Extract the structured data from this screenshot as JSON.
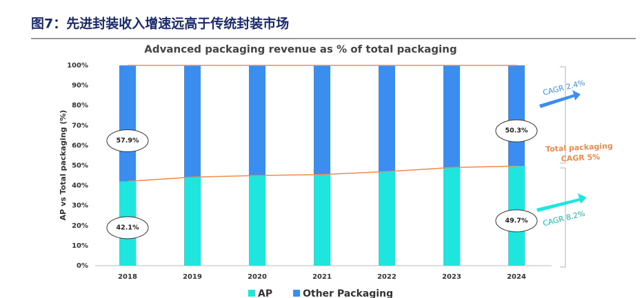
{
  "header": {
    "title": "图7：先进封装收入增速远高于传统封装市场"
  },
  "chart_data": {
    "type": "bar",
    "stacked": true,
    "title": "Advanced packaging revenue as % of total packaging",
    "y_label": "AP vs Total packaging (%)",
    "categories": [
      "2018",
      "2019",
      "2020",
      "2021",
      "2022",
      "2023",
      "2024"
    ],
    "series": [
      {
        "name": "AP",
        "color": "#1ee6df",
        "values": [
          42.1,
          44.2,
          45,
          45.5,
          47,
          49,
          49.7
        ],
        "value_labels": [
          "42.1%",
          null,
          null,
          null,
          null,
          null,
          "49.7%"
        ]
      },
      {
        "name": "Other Packaging",
        "color": "#3b8ef0",
        "values": [
          57.9,
          55.8,
          55,
          54.5,
          53,
          51,
          50.3
        ],
        "value_labels": [
          "57.9%",
          null,
          null,
          null,
          null,
          null,
          "50.3%"
        ]
      }
    ],
    "line_color": "#f08a4b",
    "ylim": [
      0,
      100
    ],
    "yticks": [
      {
        "value": 0,
        "label": "0%"
      },
      {
        "value": 10,
        "label": "10%"
      },
      {
        "value": 20,
        "label": "20%"
      },
      {
        "value": 30,
        "label": "30%"
      },
      {
        "value": 40,
        "label": "40%"
      },
      {
        "value": 50,
        "label": "50%"
      },
      {
        "value": 60,
        "label": "60%"
      },
      {
        "value": 70,
        "label": "70%"
      },
      {
        "value": 80,
        "label": "80%"
      },
      {
        "value": 90,
        "label": "90%"
      },
      {
        "value": 100,
        "label": "100%"
      }
    ],
    "annotations": [
      "CAGR 2.4%",
      "Total packaging",
      "CAGR 5%",
      "CAGR 8.2%"
    ],
    "legend": "bottom"
  }
}
